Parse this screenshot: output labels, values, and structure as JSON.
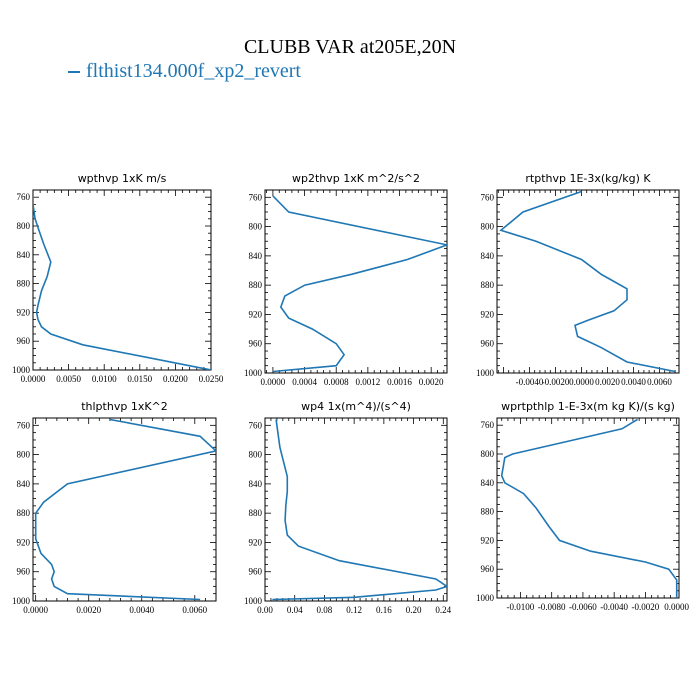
{
  "title": "CLUBB VAR at205E,20N",
  "legend": {
    "label": "flthist134.000f_xp2_revert",
    "color": "#1f77b4"
  },
  "chart_data": [
    {
      "type": "line",
      "title": "wpthvp  1xK m/s",
      "xlim": [
        0,
        0.025
      ],
      "ylim": [
        750,
        1000
      ],
      "y_inverted": true,
      "xticks": [
        "0.0000",
        "0.0050",
        "0.0100",
        "0.0150",
        "0.0200",
        "0.0250"
      ],
      "xtick_values": [
        0,
        0.005,
        0.01,
        0.015,
        0.02,
        0.025
      ],
      "yticks": [
        "760",
        "800",
        "840",
        "880",
        "920",
        "960",
        "1000"
      ],
      "ytick_values": [
        760,
        800,
        840,
        880,
        920,
        960,
        1000
      ],
      "series": [
        {
          "x": [
            0,
            0,
            0.0003,
            0.0008,
            0.0015,
            0.0025,
            0.002,
            0.0012,
            0.0007,
            0.0005,
            0.0007,
            0.0012,
            0.0025,
            0.007,
            0.025
          ],
          "y": [
            752,
            770,
            790,
            805,
            825,
            850,
            870,
            890,
            910,
            920,
            930,
            940,
            950,
            965,
            1000
          ]
        }
      ]
    },
    {
      "type": "line",
      "title": "wp2thvp  1xK m^2/s^2",
      "xlim": [
        -0.0001,
        0.0022
      ],
      "ylim": [
        750,
        1000
      ],
      "y_inverted": true,
      "xticks": [
        "0.0000",
        "0.0004",
        "0.0008",
        "0.0012",
        "0.0016",
        "0.0020"
      ],
      "xtick_values": [
        0,
        0.0004,
        0.0008,
        0.0012,
        0.0016,
        0.002
      ],
      "yticks": [
        "760",
        "800",
        "840",
        "880",
        "920",
        "960",
        "1000"
      ],
      "ytick_values": [
        760,
        800,
        840,
        880,
        920,
        960,
        1000
      ],
      "series": [
        {
          "x": [
            0,
            0.0002,
            0.0022,
            0.0017,
            0.001,
            0.0004,
            0.00015,
            0.0001,
            0.0002,
            0.0005,
            0.0008,
            0.0009,
            0.0008,
            0
          ],
          "y": [
            758,
            780,
            825,
            845,
            865,
            880,
            895,
            910,
            925,
            940,
            960,
            975,
            990,
            998
          ]
        }
      ]
    },
    {
      "type": "line",
      "title": "rtpthvp  1E-3x(kg/kg) K",
      "xlim": [
        -0.0065,
        0.0075
      ],
      "ylim": [
        750,
        1000
      ],
      "y_inverted": true,
      "xticks": [
        "-0.0040",
        "-0.0020",
        "0.0000",
        "0.0020",
        "0.0040",
        "0.0060"
      ],
      "xtick_values": [
        -0.004,
        -0.002,
        0,
        0.002,
        0.004,
        0.006
      ],
      "yticks": [
        "760",
        "800",
        "840",
        "880",
        "920",
        "960",
        "1000"
      ],
      "ytick_values": [
        760,
        800,
        840,
        880,
        920,
        960,
        1000
      ],
      "series": [
        {
          "x": [
            0.0,
            -0.0045,
            -0.0062,
            -0.0035,
            0.0,
            0.0015,
            0.0025,
            0.0035,
            0.0035,
            0.0025,
            0.0005,
            -0.0005,
            -0.0003,
            0.0015,
            0.0035,
            0.0072
          ],
          "y": [
            752,
            780,
            805,
            820,
            845,
            865,
            875,
            885,
            900,
            915,
            928,
            935,
            950,
            965,
            985,
            998
          ]
        }
      ]
    },
    {
      "type": "line",
      "title": "thlpthvp  1xK^2",
      "xlim": [
        -0.0001,
        0.0068
      ],
      "ylim": [
        750,
        1000
      ],
      "y_inverted": true,
      "xticks": [
        "0.0000",
        "0.0020",
        "0.0040",
        "0.0060"
      ],
      "xtick_values": [
        0,
        0.002,
        0.004,
        0.006
      ],
      "yticks": [
        "760",
        "800",
        "840",
        "880",
        "920",
        "960",
        "1000"
      ],
      "ytick_values": [
        760,
        800,
        840,
        880,
        920,
        960,
        1000
      ],
      "series": [
        {
          "x": [
            0.0028,
            0.0062,
            0.0068,
            0.0012,
            0.0003,
            0,
            0,
            0.0002,
            0.0006,
            0.0007,
            0.0006,
            0.0007,
            0.0012,
            0.0062
          ],
          "y": [
            752,
            775,
            795,
            840,
            865,
            880,
            915,
            935,
            950,
            960,
            970,
            980,
            990,
            998
          ]
        }
      ]
    },
    {
      "type": "line",
      "title": "wp4  1x(m^4)/(s^4)",
      "xlim": [
        0,
        0.245
      ],
      "ylim": [
        750,
        1000
      ],
      "y_inverted": true,
      "xticks": [
        "0.00",
        "0.04",
        "0.08",
        "0.12",
        "0.16",
        "0.20",
        "0.24"
      ],
      "xtick_values": [
        0,
        0.04,
        0.08,
        0.12,
        0.16,
        0.2,
        0.24
      ],
      "yticks": [
        "760",
        "800",
        "840",
        "880",
        "920",
        "960",
        "1000"
      ],
      "ytick_values": [
        760,
        800,
        840,
        880,
        920,
        960,
        1000
      ],
      "series": [
        {
          "x": [
            0.015,
            0.02,
            0.025,
            0.03,
            0.03,
            0.028,
            0.027,
            0.03,
            0.045,
            0.1,
            0.23,
            0.245,
            0.23,
            0.12,
            0.01
          ],
          "y": [
            752,
            790,
            810,
            830,
            850,
            870,
            890,
            910,
            925,
            945,
            970,
            980,
            985,
            995,
            998
          ]
        }
      ]
    },
    {
      "type": "line",
      "title": "wprtpthlp  1-E-3x(m kg K)/(s kg)",
      "xlim": [
        -0.0115,
        0.00015
      ],
      "ylim": [
        750,
        1000
      ],
      "y_inverted": true,
      "xticks": [
        "-0.0100",
        "-0.0080",
        "-0.0060",
        "-0.0040",
        "-0.0020",
        "0.0000"
      ],
      "xtick_values": [
        -0.01,
        -0.008,
        -0.006,
        -0.004,
        -0.002,
        0
      ],
      "yticks": [
        "760",
        "800",
        "840",
        "880",
        "920",
        "960",
        "1000"
      ],
      "ytick_values": [
        760,
        800,
        840,
        880,
        920,
        960,
        1000
      ],
      "series": [
        {
          "x": [
            -0.0025,
            -0.0035,
            -0.0065,
            -0.0105,
            -0.011,
            -0.0112,
            -0.011,
            -0.0098,
            -0.009,
            -0.0082,
            -0.0075,
            -0.0055,
            -0.002,
            -0.0005,
            0,
            0
          ],
          "y": [
            752,
            765,
            780,
            800,
            805,
            830,
            840,
            855,
            875,
            900,
            920,
            935,
            950,
            960,
            975,
            1000
          ]
        }
      ]
    }
  ]
}
